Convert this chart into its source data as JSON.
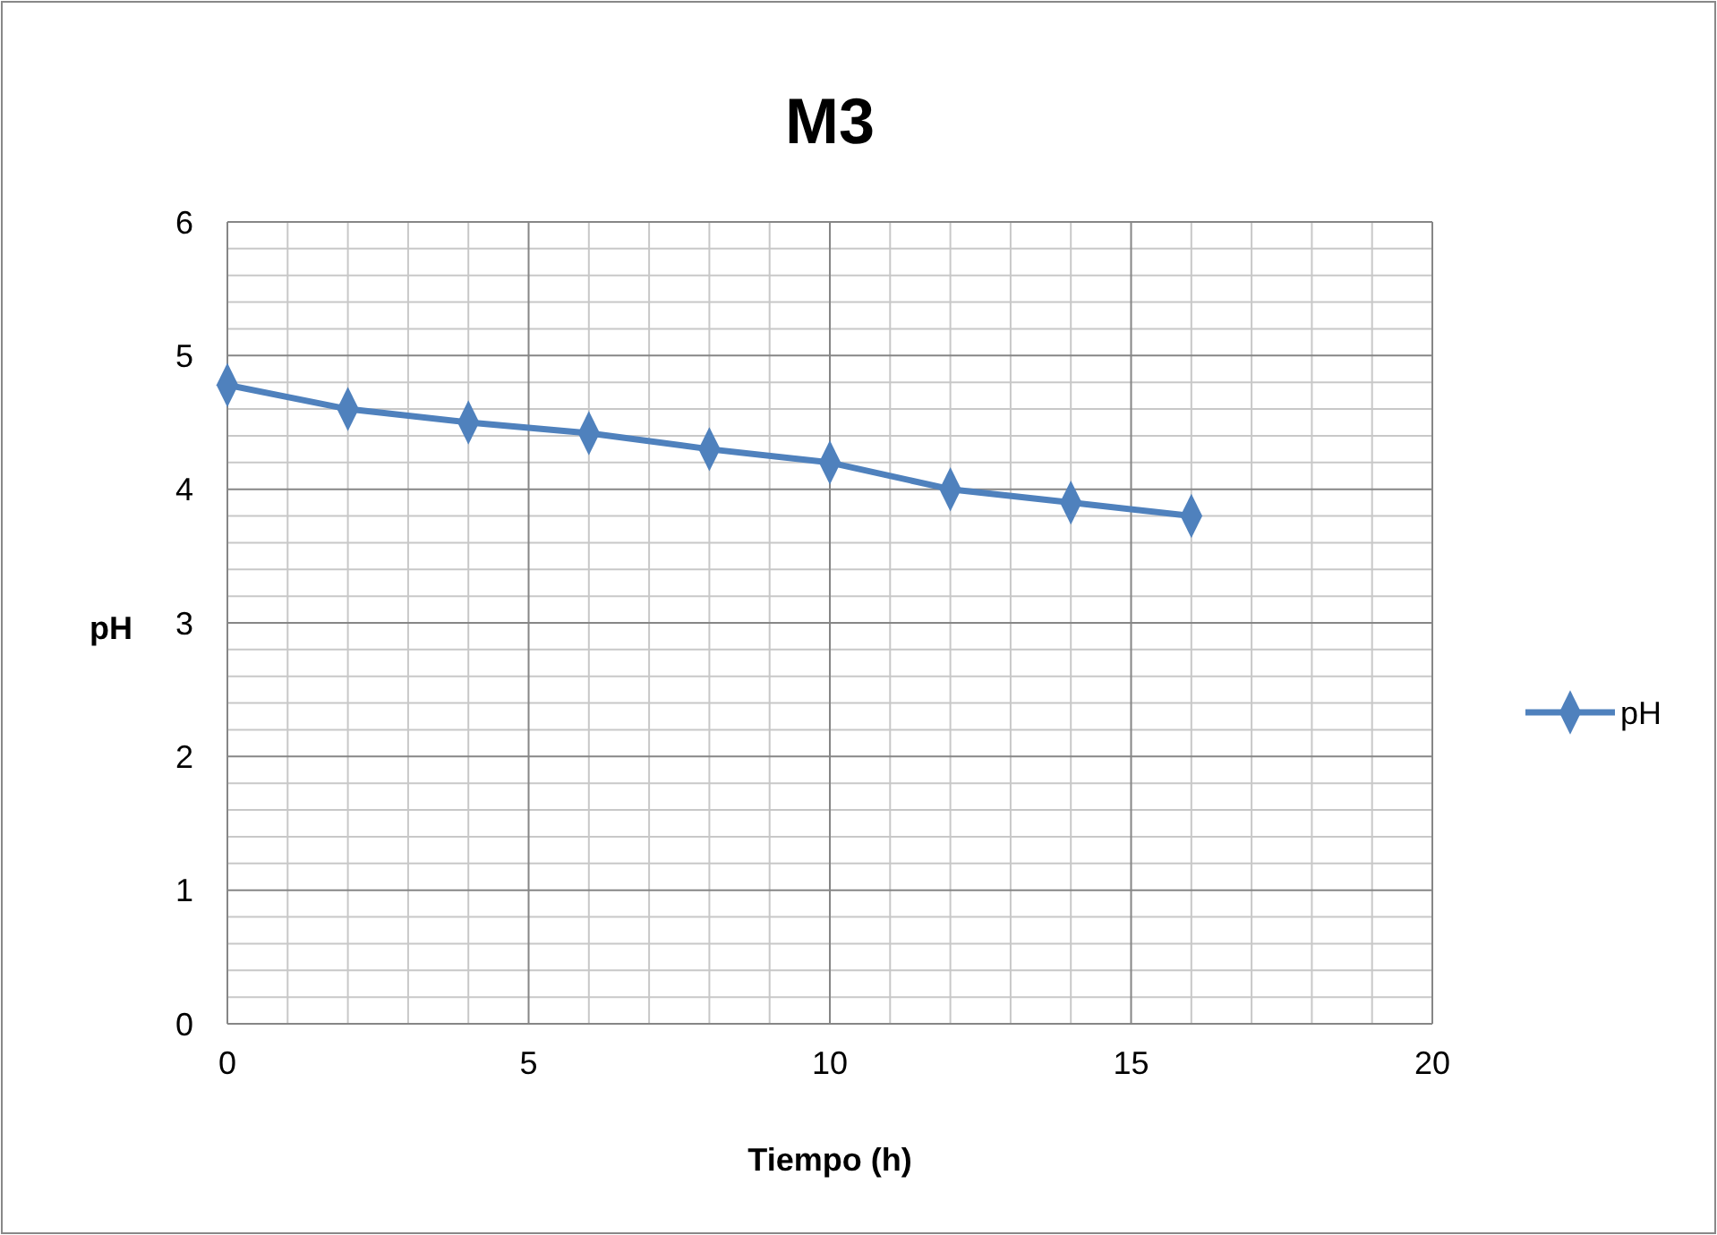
{
  "chart_data": {
    "type": "line",
    "title": "M3",
    "xlabel": "Tiempo (h)",
    "ylabel": "pH",
    "x": [
      0,
      2,
      4,
      6,
      8,
      10,
      12,
      14,
      16
    ],
    "series": [
      {
        "name": "pH",
        "color": "#4f81bd",
        "values": [
          4.78,
          4.6,
          4.5,
          4.42,
          4.3,
          4.2,
          4.0,
          3.9,
          3.8
        ]
      }
    ],
    "xlim": [
      0,
      20
    ],
    "xticks": [
      0,
      5,
      10,
      15,
      20
    ],
    "ylim": [
      0,
      6
    ],
    "yticks": [
      0,
      1,
      2,
      3,
      4,
      5,
      6
    ],
    "grid": true,
    "legend": "right",
    "marker": "diamond",
    "line_style": "solid"
  }
}
